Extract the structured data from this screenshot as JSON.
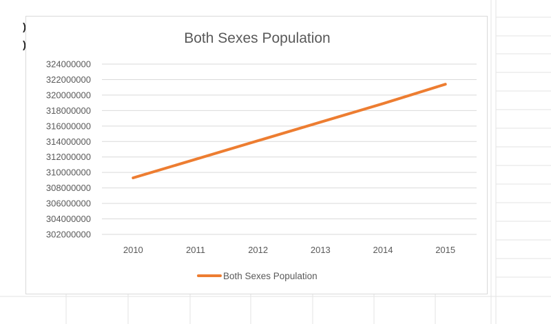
{
  "chart_data": {
    "type": "line",
    "title": "Both Sexes Population",
    "categories": [
      "2010",
      "2011",
      "2012",
      "2013",
      "2014",
      "2015"
    ],
    "series": [
      {
        "name": "Both Sexes Population",
        "color": "#ed7d31",
        "values": [
          309300000,
          311700000,
          314100000,
          316500000,
          318900000,
          321400000
        ]
      }
    ],
    "ylim": [
      302000000,
      324000000
    ],
    "yticks": [
      "324000000",
      "322000000",
      "320000000",
      "318000000",
      "316000000",
      "314000000",
      "312000000",
      "310000000",
      "308000000",
      "306000000",
      "304000000",
      "302000000"
    ],
    "legend_position": "bottom",
    "grid": true
  },
  "edge_glyphs": [
    ")",
    ")"
  ]
}
